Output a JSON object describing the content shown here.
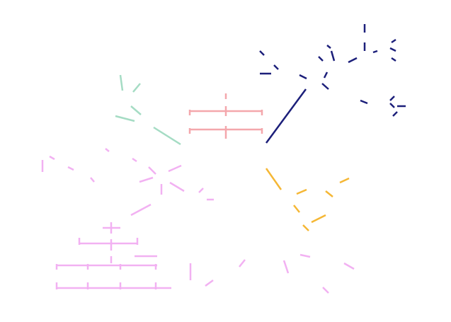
{
  "diagram": {
    "background": "#ffffff",
    "groups": [
      {
        "name": "navy-cluster",
        "color": "#1c1f7a",
        "segments": [
          [
            376,
            202,
            432,
            126
          ],
          [
            515,
            34,
            515,
            46
          ],
          [
            515,
            60,
            515,
            72
          ],
          [
            527,
            74,
            533,
            72
          ],
          [
            553,
            60,
            559,
            56
          ],
          [
            551,
            68,
            559,
            72
          ],
          [
            553,
            82,
            559,
            86
          ],
          [
            367,
            72,
            373,
            78
          ],
          [
            387,
            92,
            393,
            98
          ],
          [
            367,
            104,
            383,
            104
          ],
          [
            423,
            106,
            433,
            111
          ],
          [
            450,
            80,
            456,
            86
          ],
          [
            462,
            64,
            467,
            68
          ],
          [
            468,
            72,
            472,
            86
          ],
          [
            462,
            102,
            458,
            110
          ],
          [
            455,
            118,
            464,
            126
          ],
          [
            492,
            88,
            504,
            82
          ],
          [
            509,
            142,
            519,
            146
          ],
          [
            551,
            142,
            557,
            136
          ],
          [
            551,
            146,
            557,
            152
          ],
          [
            555,
            164,
            561,
            158
          ],
          [
            561,
            150,
            573,
            150
          ]
        ]
      },
      {
        "name": "red-cluster",
        "color": "#f4a7ac",
        "segments": [
          [
            268,
            157,
            370,
            157
          ],
          [
            268,
            183,
            370,
            183
          ],
          [
            268,
            155,
            268,
            163
          ],
          [
            370,
            155,
            370,
            163
          ],
          [
            268,
            181,
            268,
            189
          ],
          [
            370,
            181,
            370,
            189
          ],
          [
            319,
            132,
            319,
            140
          ],
          [
            319,
            150,
            319,
            164
          ],
          [
            319,
            178,
            319,
            196
          ]
        ]
      },
      {
        "name": "green-cluster",
        "color": "#a5dcc4",
        "segments": [
          [
            170,
            106,
            173,
            128
          ],
          [
            188,
            130,
            198,
            118
          ],
          [
            185,
            150,
            199,
            162
          ],
          [
            163,
            164,
            190,
            171
          ],
          [
            217,
            180,
            255,
            204
          ]
        ]
      },
      {
        "name": "orange-cluster",
        "color": "#f5b735",
        "segments": [
          [
            376,
            238,
            397,
            268
          ],
          [
            419,
            274,
            433,
            268
          ],
          [
            460,
            270,
            470,
            278
          ],
          [
            480,
            258,
            493,
            252
          ],
          [
            415,
            290,
            423,
            300
          ],
          [
            428,
            318,
            436,
            326
          ],
          [
            440,
            314,
            460,
            304
          ]
        ]
      },
      {
        "name": "pink-upper-cluster",
        "color": "#f2b1f2",
        "segments": [
          [
            60,
            226,
            60,
            243
          ],
          [
            70,
            221,
            77,
            225
          ],
          [
            96,
            236,
            104,
            240
          ],
          [
            128,
            251,
            133,
            257
          ],
          [
            149,
            210,
            154,
            214
          ],
          [
            187,
            224,
            193,
            228
          ],
          [
            210,
            236,
            220,
            246
          ],
          [
            238,
            242,
            256,
            234
          ],
          [
            197,
            257,
            216,
            251
          ],
          [
            228,
            260,
            228,
            275
          ],
          [
            240,
            258,
            260,
            270
          ],
          [
            281,
            272,
            287,
            266
          ],
          [
            292,
            282,
            302,
            282
          ],
          [
            185,
            304,
            213,
            289
          ]
        ]
      },
      {
        "name": "pink-lower-cluster",
        "color": "#f2b1f2",
        "segments": [
          [
            145,
            322,
            170,
            322
          ],
          [
            157,
            314,
            157,
            330
          ],
          [
            112,
            344,
            194,
            344
          ],
          [
            112,
            336,
            112,
            346
          ],
          [
            194,
            336,
            194,
            346
          ],
          [
            157,
            338,
            157,
            354
          ],
          [
            157,
            362,
            157,
            372
          ],
          [
            190,
            362,
            222,
            362
          ],
          [
            80,
            375,
            222,
            375
          ],
          [
            80,
            407,
            242,
            407
          ],
          [
            80,
            373,
            80,
            381
          ],
          [
            80,
            399,
            80,
            409
          ],
          [
            124,
            373,
            124,
            381
          ],
          [
            124,
            399,
            124,
            409
          ],
          [
            170,
            373,
            170,
            381
          ],
          [
            170,
            399,
            170,
            409
          ],
          [
            220,
            373,
            220,
            381
          ],
          [
            220,
            399,
            220,
            409
          ],
          [
            269,
            372,
            269,
            396
          ],
          [
            290,
            404,
            301,
            396
          ],
          [
            338,
            377,
            346,
            367
          ],
          [
            401,
            368,
            407,
            386
          ],
          [
            424,
            360,
            438,
            363
          ],
          [
            486,
            372,
            500,
            380
          ],
          [
            456,
            406,
            464,
            414
          ]
        ]
      }
    ]
  }
}
